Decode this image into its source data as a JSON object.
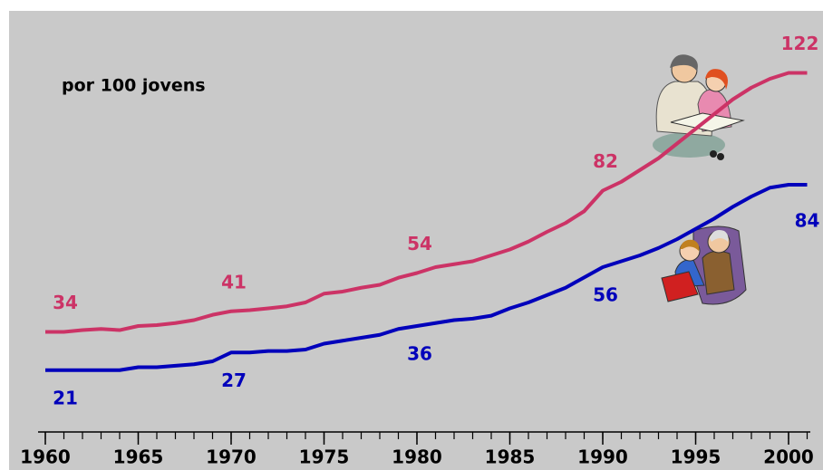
{
  "chart_data": {
    "type": "line",
    "annotation": "por 100 jovens",
    "x": [
      1960,
      1961,
      1962,
      1963,
      1964,
      1965,
      1966,
      1967,
      1968,
      1969,
      1970,
      1971,
      1972,
      1973,
      1974,
      1975,
      1976,
      1977,
      1978,
      1979,
      1980,
      1981,
      1982,
      1983,
      1984,
      1985,
      1986,
      1987,
      1988,
      1989,
      1990,
      1991,
      1992,
      1993,
      1994,
      1995,
      1996,
      1997,
      1998,
      1999,
      2000,
      2001
    ],
    "xlim": [
      1960,
      2001
    ],
    "xticks": [
      1960,
      1965,
      1970,
      1975,
      1980,
      1985,
      1990,
      1995,
      2000
    ],
    "series": [
      {
        "color": "#cc3366",
        "values": [
          34,
          34,
          34.6,
          35,
          34.6,
          36,
          36.3,
          37,
          38,
          39.8,
          41,
          41.4,
          42,
          42.7,
          44,
          47,
          47.7,
          49,
          50,
          52.4,
          54,
          56,
          57,
          58,
          60,
          62,
          64.7,
          68,
          71,
          75,
          82,
          85,
          89,
          93,
          98,
          103,
          108,
          113,
          117,
          120,
          122,
          122
        ]
      },
      {
        "color": "#0000bb",
        "values": [
          21,
          21,
          21,
          21,
          21,
          22,
          22,
          22.5,
          23,
          24,
          27,
          27,
          27.5,
          27.5,
          28,
          30,
          31,
          32,
          33,
          35,
          36,
          37,
          38,
          38.5,
          39.5,
          42,
          44,
          46.5,
          49,
          52.5,
          56,
          58,
          60,
          62.5,
          65.5,
          69,
          72.5,
          76.5,
          80,
          83,
          84,
          84
        ]
      }
    ]
  }
}
